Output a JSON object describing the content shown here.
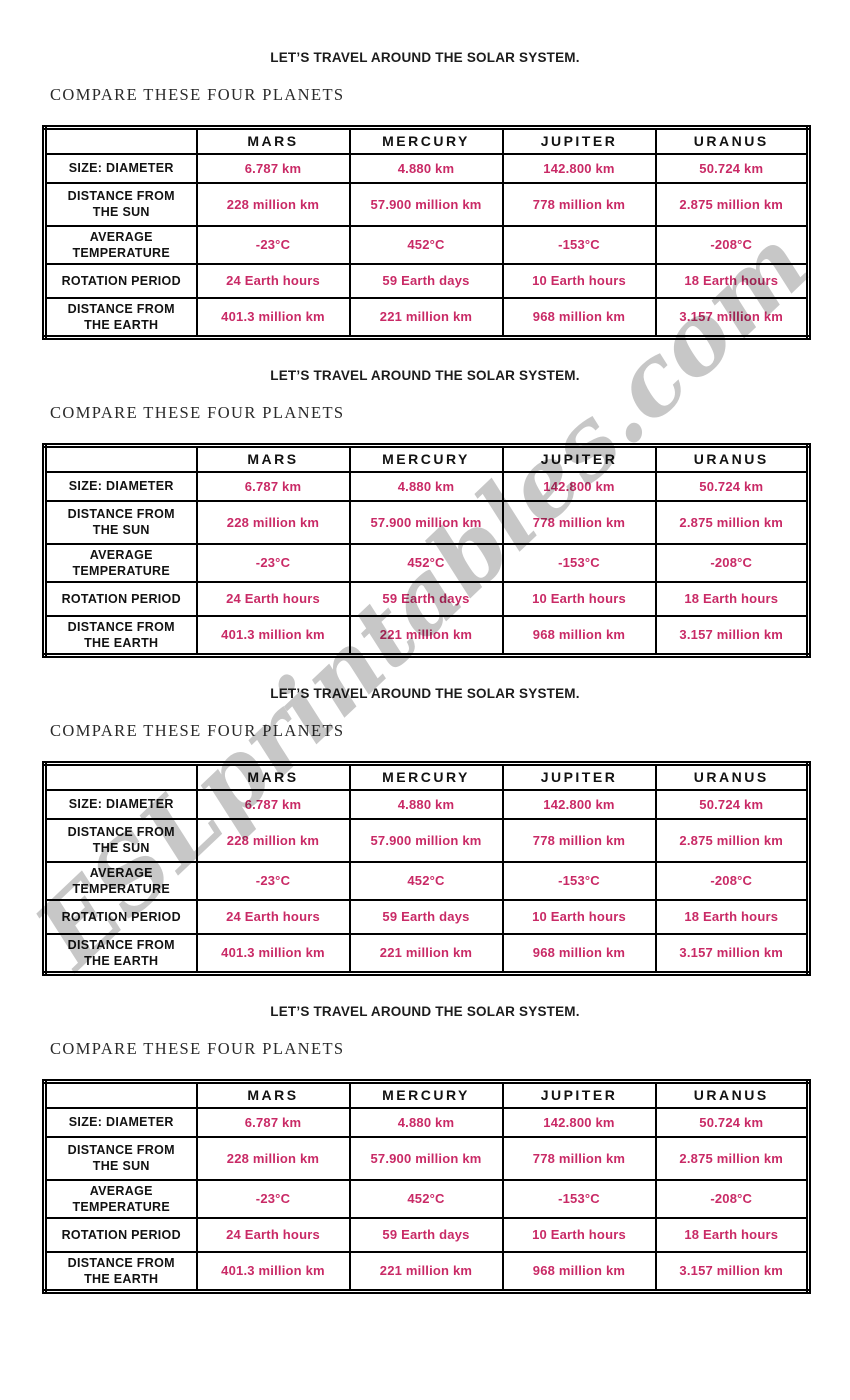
{
  "page": {
    "title": "LET’S TRAVEL AROUND THE SOLAR SYSTEM.",
    "subtitle": "COMPARE THESE FOUR PLANETS",
    "watermark": "ESLprintables.com",
    "repeat_count": 4,
    "colors": {
      "data_text": "#c92a66",
      "label_text": "#121212",
      "watermark": "#8f8f8f",
      "table_border": "#000000"
    }
  },
  "table": {
    "columns": [
      "MARS",
      "MERCURY",
      "JUPITER",
      "URANUS"
    ],
    "rows": [
      {
        "label": "SIZE: DIAMETER",
        "values": [
          "6.787 km",
          "4.880 km",
          "142.800 km",
          "50.724 km"
        ]
      },
      {
        "label": "DISTANCE FROM THE SUN",
        "values": [
          "228 million km",
          "57.900 million km",
          "778 million km",
          "2.875 million km"
        ]
      },
      {
        "label": "AVERAGE TEMPERATURE",
        "values": [
          "-23°C",
          "452°C",
          "-153°C",
          "-208°C"
        ]
      },
      {
        "label": "ROTATION PERIOD",
        "values": [
          "24 Earth hours",
          "59 Earth days",
          "10 Earth hours",
          "18 Earth hours"
        ]
      },
      {
        "label": "DISTANCE FROM THE EARTH",
        "values": [
          "401.3 million km",
          "221 million km",
          "968 million km",
          "3.157 million km"
        ]
      }
    ]
  }
}
